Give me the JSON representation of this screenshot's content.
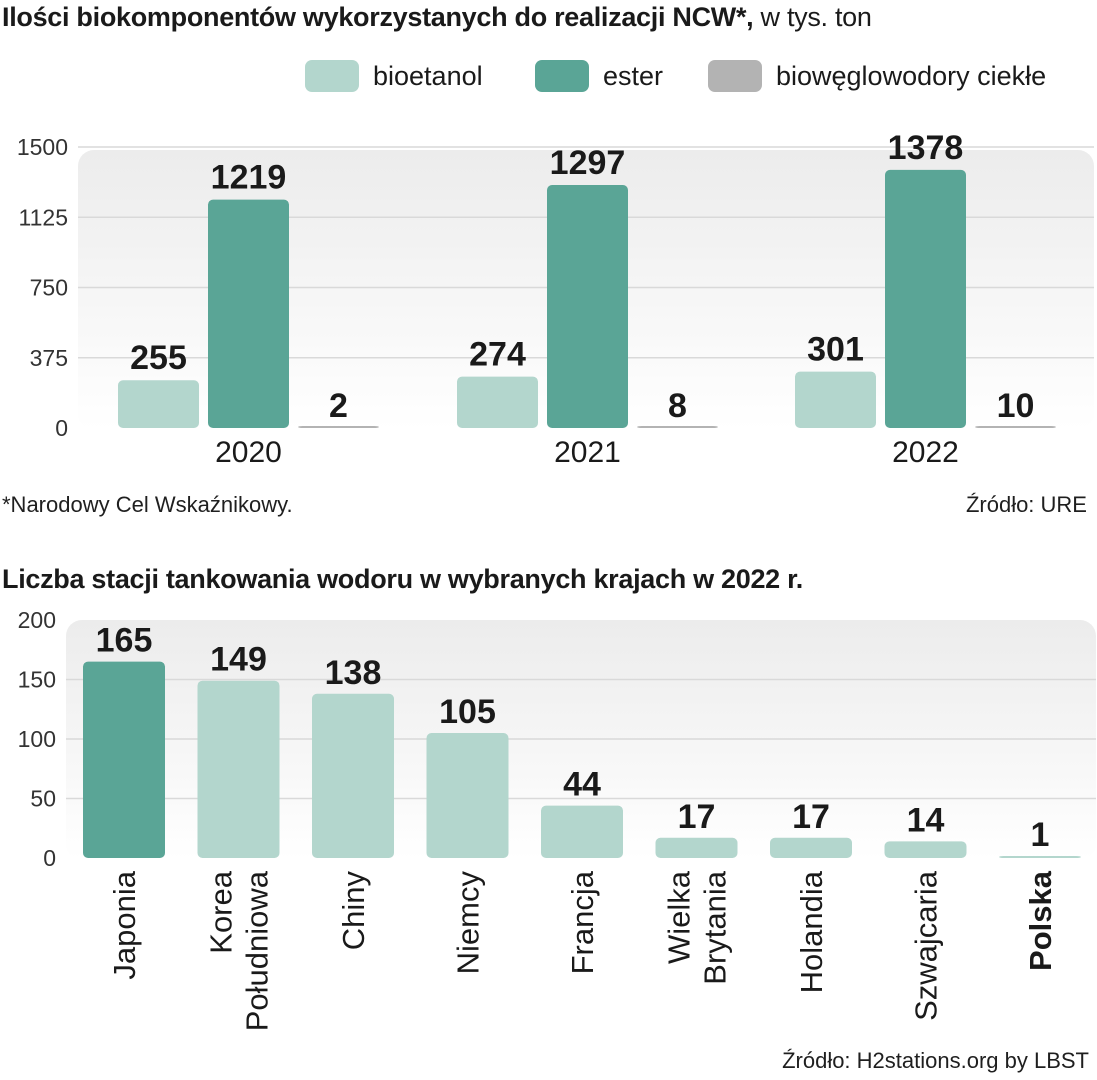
{
  "title1": {
    "bold": "Ilości biokomponentów wykorzystanych do realizacji NCW*,",
    "regular": " w tys. ton"
  },
  "legend": [
    {
      "label": "bioetanol",
      "color": "#b3d6cd"
    },
    {
      "label": "ester",
      "color": "#5aa596"
    },
    {
      "label": "biowęglowodory ciekłe",
      "color": "#b3b3b3"
    }
  ],
  "footnote": "*Narodowy Cel Wskaźnikowy.",
  "source1": "Źródło: URE",
  "title2": "Liczba stacji tankowania wodoru w wybranych krajach w 2022 r.",
  "source2": "Źródło: H2stations.org by LBST",
  "chart_data": [
    {
      "type": "bar",
      "categories": [
        "2020",
        "2021",
        "2022"
      ],
      "series": [
        {
          "name": "bioetanol",
          "values": [
            255,
            274,
            301
          ],
          "color": "#b3d6cd"
        },
        {
          "name": "ester",
          "values": [
            1219,
            1297,
            1378
          ],
          "color": "#5aa596"
        },
        {
          "name": "biowęglowodory ciekłe",
          "values": [
            2,
            8,
            10
          ],
          "color": "#b3b3b3"
        }
      ],
      "yticks": [
        "0",
        "375",
        "750",
        "1125",
        "1500"
      ],
      "ylim": [
        0,
        1500
      ],
      "legend": "top-right",
      "grid": true
    },
    {
      "type": "bar",
      "categories": [
        "Japonia",
        "Korea Południowa",
        "Chiny",
        "Niemcy",
        "Francja",
        "Wielka Brytania",
        "Holandia",
        "Szwajcaria",
        "Polska"
      ],
      "values": [
        165,
        149,
        138,
        105,
        44,
        17,
        17,
        14,
        1
      ],
      "highlight_color": "#5aa596",
      "bar_color": "#b3d6cd",
      "yticks": [
        "0",
        "50",
        "100",
        "150",
        "200"
      ],
      "ylim": [
        0,
        200
      ],
      "grid": true
    }
  ]
}
